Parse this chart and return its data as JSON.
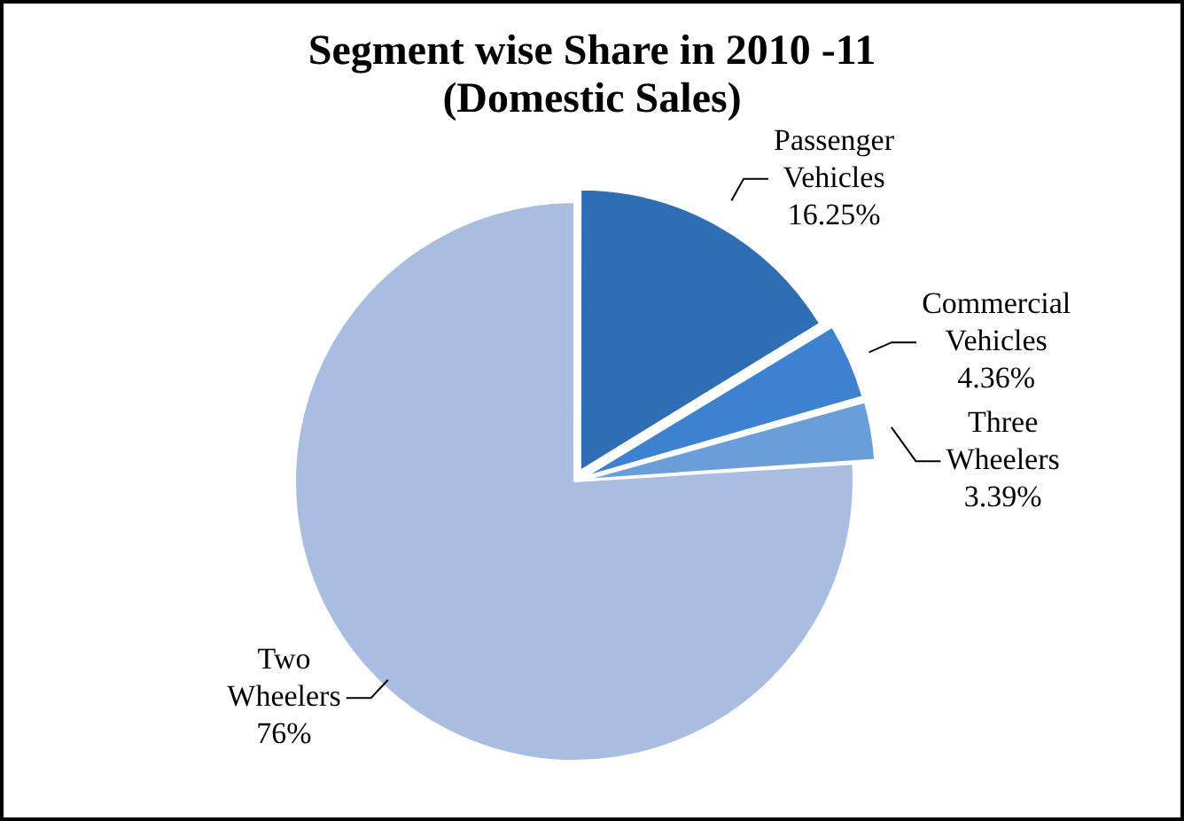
{
  "chart_data": {
    "type": "pie",
    "title": "Segment wise Share in 2010 -11 (Domestic Sales)",
    "categories": [
      "Passenger Vehicles",
      "Commercial Vehicles",
      "Three Wheelers",
      "Two Wheelers"
    ],
    "values": [
      16.25,
      4.36,
      3.39,
      76
    ],
    "value_labels": [
      "16.25%",
      "4.36%",
      "3.39%",
      "76%"
    ],
    "colors": [
      "#2f6db5",
      "#3d82d0",
      "#6a9ed8",
      "#a9bde0"
    ],
    "legend": false
  }
}
